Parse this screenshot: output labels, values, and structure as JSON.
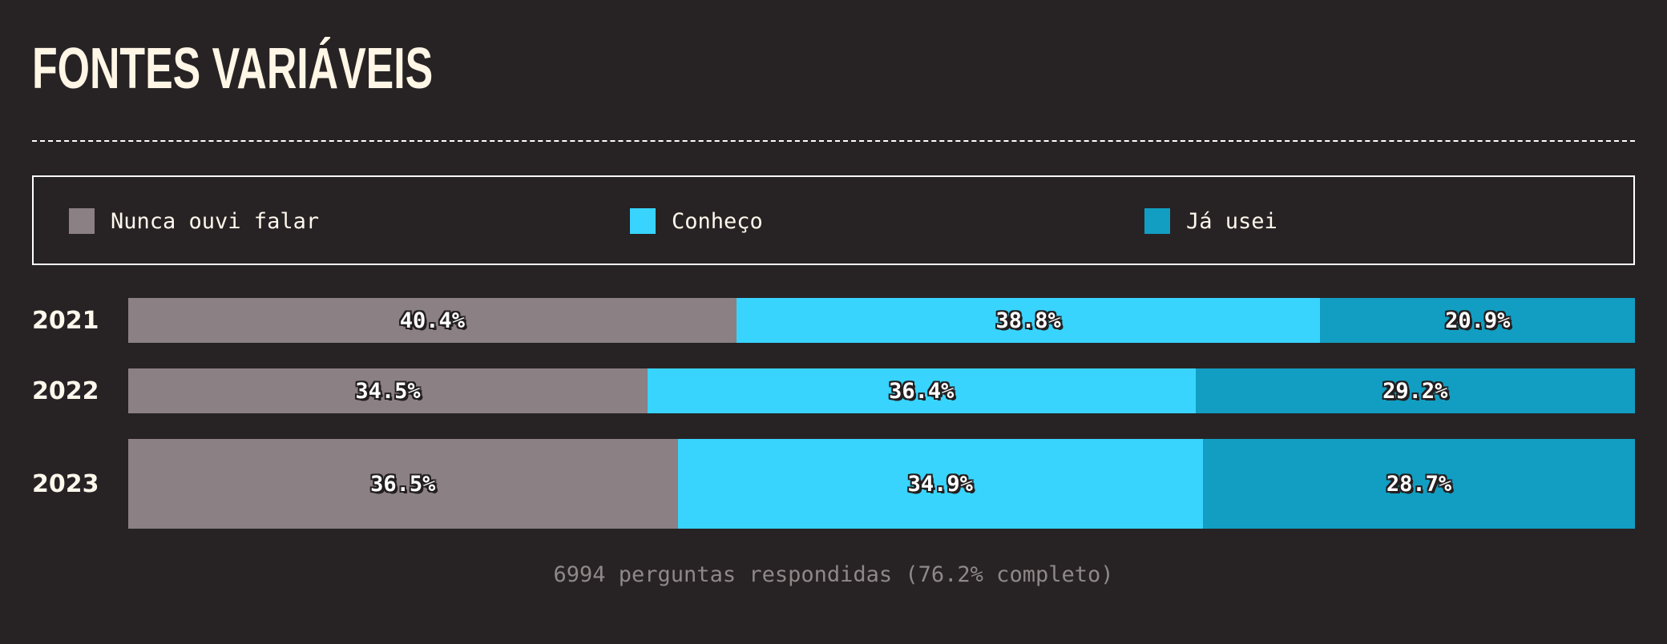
{
  "title": "FONTES VARIÁVEIS",
  "footer": "6994 perguntas respondidas (76.2% completo)",
  "chart_data": {
    "type": "bar",
    "orientation": "horizontal",
    "stacked": true,
    "normalized": true,
    "categories": [
      "2021",
      "2022",
      "2023"
    ],
    "series": [
      {
        "name": "Nunca ouvi falar",
        "color": "#8b8084",
        "values": [
          40.4,
          34.5,
          36.5
        ],
        "labels": [
          "40.4%",
          "34.5%",
          "36.5%"
        ]
      },
      {
        "name": "Conheço",
        "color": "#38d4fe",
        "values": [
          38.8,
          36.4,
          34.9
        ],
        "labels": [
          "38.8%",
          "36.4%",
          "34.9%"
        ]
      },
      {
        "name": "Já usei",
        "color": "#129ec2",
        "values": [
          20.9,
          29.2,
          28.7
        ],
        "labels": [
          "20.9%",
          "29.2%",
          "28.7%"
        ]
      }
    ],
    "legend_position": "top",
    "grid": false
  }
}
